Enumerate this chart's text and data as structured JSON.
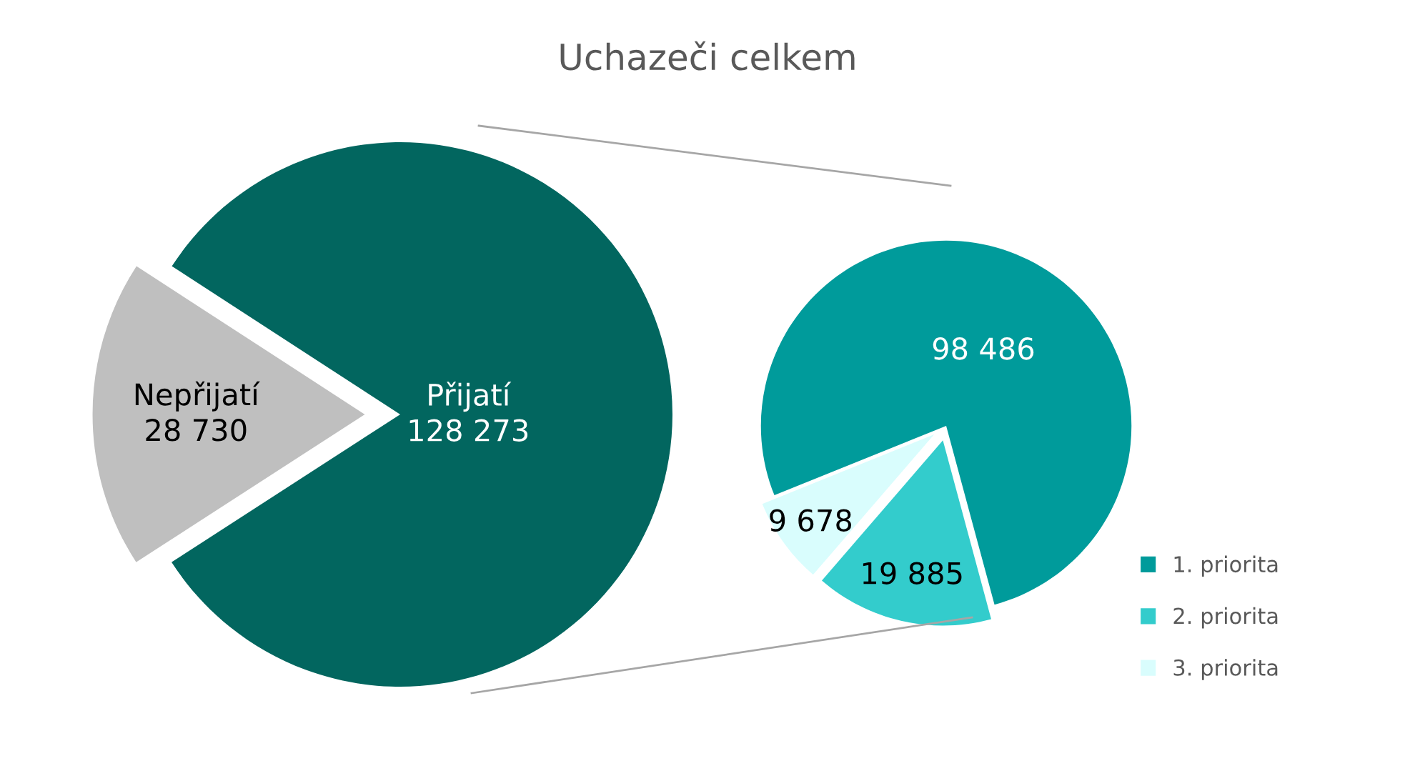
{
  "chart_data": [
    {
      "type": "pie",
      "title": "Uchazeči celkem",
      "categories": [
        "Nepřijatí",
        "Přijatí"
      ],
      "values": [
        28730,
        128273
      ],
      "colors": [
        "#bfbfbf",
        "#02665f"
      ],
      "value_labels": [
        "28 730",
        "128 273"
      ],
      "legend": false
    },
    {
      "type": "pie",
      "categories": [
        "1. priorita",
        "2. priorita",
        "3. priorita"
      ],
      "values": [
        98486,
        19885,
        9678
      ],
      "colors": [
        "#009b9b",
        "#33cccc",
        "#d9fdfd"
      ],
      "value_labels": [
        "98 486",
        "19 885",
        "9 678"
      ],
      "legend": "bottom right"
    }
  ]
}
